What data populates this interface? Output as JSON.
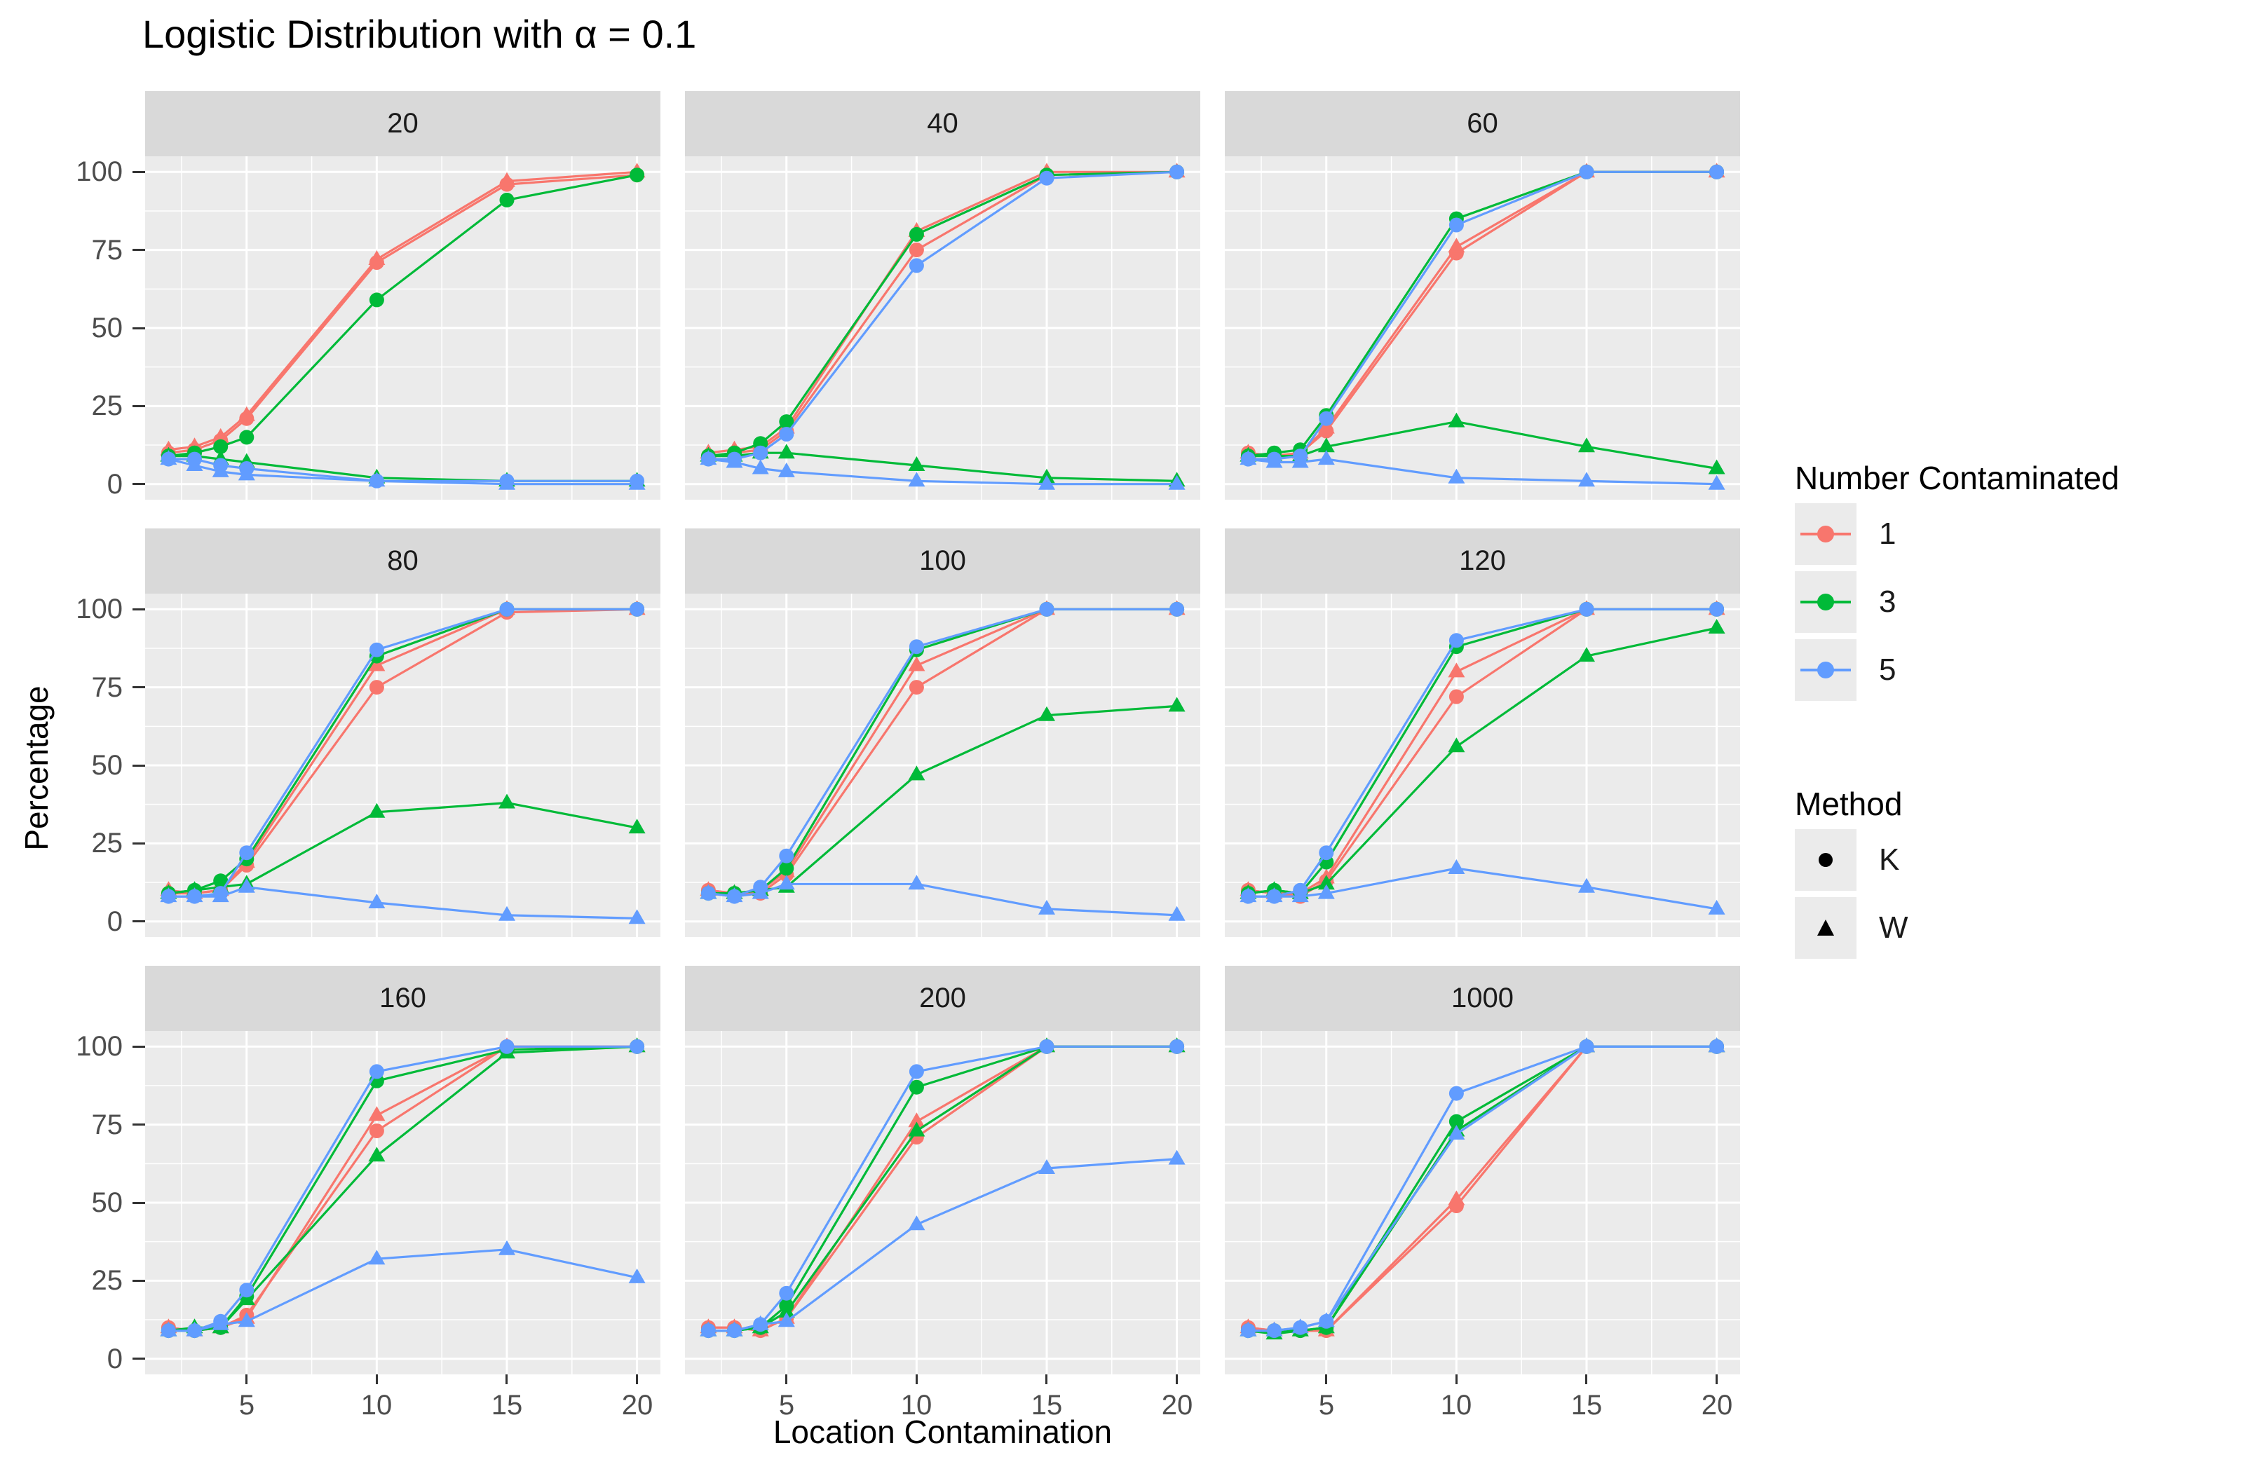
{
  "chart_data": {
    "type": "line",
    "title": "Logistic Distribution with α = 0.1",
    "xlabel": "Location Contamination",
    "ylabel": "Percentage",
    "x": [
      2,
      3,
      4,
      5,
      10,
      15,
      20
    ],
    "x_ticks": [
      5,
      10,
      15,
      20
    ],
    "x_minor": [
      2.5,
      7.5,
      12.5,
      17.5
    ],
    "y_ticks": [
      0,
      25,
      50,
      75,
      100
    ],
    "y_minor": [
      12.5,
      37.5,
      62.5,
      87.5
    ],
    "xlim": [
      1.1,
      20.9
    ],
    "ylim": [
      -5,
      105
    ],
    "grid": "on",
    "panel_bg": "#ebebeb",
    "strip_bg": "#d9d9d9",
    "legend_position": "right",
    "legend": {
      "color": {
        "title": "Number Contaminated",
        "entries": [
          {
            "label": "1",
            "color": "#F8766D"
          },
          {
            "label": "3",
            "color": "#00BA38"
          },
          {
            "label": "5",
            "color": "#619CFF"
          }
        ]
      },
      "shape": {
        "title": "Method",
        "entries": [
          {
            "label": "K",
            "shape": "circle"
          },
          {
            "label": "W",
            "shape": "triangle"
          }
        ]
      }
    },
    "facets": [
      {
        "label": "20",
        "series": [
          {
            "contaminated": "1",
            "method": "K",
            "values": [
              10,
              11,
              14,
              21,
              71,
              96,
              99
            ]
          },
          {
            "contaminated": "1",
            "method": "W",
            "values": [
              11,
              12,
              15,
              22,
              72,
              97,
              100
            ]
          },
          {
            "contaminated": "3",
            "method": "K",
            "values": [
              9,
              10,
              12,
              15,
              59,
              91,
              99
            ]
          },
          {
            "contaminated": "3",
            "method": "W",
            "values": [
              9,
              9,
              8,
              7,
              2,
              1,
              1
            ]
          },
          {
            "contaminated": "5",
            "method": "K",
            "values": [
              8,
              8,
              6,
              5,
              1,
              1,
              1
            ]
          },
          {
            "contaminated": "5",
            "method": "W",
            "values": [
              8,
              6,
              4,
              3,
              1,
              0,
              0
            ]
          }
        ]
      },
      {
        "label": "40",
        "series": [
          {
            "contaminated": "1",
            "method": "K",
            "values": [
              9,
              10,
              11,
              17,
              75,
              99,
              100
            ]
          },
          {
            "contaminated": "1",
            "method": "W",
            "values": [
              10,
              11,
              12,
              18,
              81,
              100,
              100
            ]
          },
          {
            "contaminated": "3",
            "method": "K",
            "values": [
              9,
              10,
              13,
              20,
              80,
              99,
              100
            ]
          },
          {
            "contaminated": "3",
            "method": "W",
            "values": [
              9,
              9,
              10,
              10,
              6,
              2,
              1
            ]
          },
          {
            "contaminated": "5",
            "method": "K",
            "values": [
              8,
              8,
              10,
              16,
              70,
              98,
              100
            ]
          },
          {
            "contaminated": "5",
            "method": "W",
            "values": [
              8,
              7,
              5,
              4,
              1,
              0,
              0
            ]
          }
        ]
      },
      {
        "label": "60",
        "series": [
          {
            "contaminated": "1",
            "method": "K",
            "values": [
              10,
              9,
              10,
              17,
              74,
              100,
              100
            ]
          },
          {
            "contaminated": "1",
            "method": "W",
            "values": [
              10,
              9,
              10,
              18,
              76,
              100,
              100
            ]
          },
          {
            "contaminated": "3",
            "method": "K",
            "values": [
              9,
              10,
              11,
              22,
              85,
              100,
              100
            ]
          },
          {
            "contaminated": "3",
            "method": "W",
            "values": [
              9,
              9,
              9,
              12,
              20,
              12,
              5
            ]
          },
          {
            "contaminated": "5",
            "method": "K",
            "values": [
              8,
              8,
              9,
              21,
              83,
              100,
              100
            ]
          },
          {
            "contaminated": "5",
            "method": "W",
            "values": [
              8,
              7,
              7,
              8,
              2,
              1,
              0
            ]
          }
        ]
      },
      {
        "label": "80",
        "series": [
          {
            "contaminated": "1",
            "method": "K",
            "values": [
              9,
              9,
              10,
              18,
              75,
              99,
              100
            ]
          },
          {
            "contaminated": "1",
            "method": "W",
            "values": [
              10,
              9,
              10,
              19,
              82,
              100,
              100
            ]
          },
          {
            "contaminated": "3",
            "method": "K",
            "values": [
              9,
              10,
              13,
              20,
              85,
              100,
              100
            ]
          },
          {
            "contaminated": "3",
            "method": "W",
            "values": [
              9,
              10,
              11,
              12,
              35,
              38,
              30
            ]
          },
          {
            "contaminated": "5",
            "method": "K",
            "values": [
              8,
              8,
              9,
              22,
              87,
              100,
              100
            ]
          },
          {
            "contaminated": "5",
            "method": "W",
            "values": [
              8,
              8,
              8,
              11,
              6,
              2,
              1
            ]
          }
        ]
      },
      {
        "label": "100",
        "series": [
          {
            "contaminated": "1",
            "method": "K",
            "values": [
              10,
              9,
              9,
              15,
              75,
              100,
              100
            ]
          },
          {
            "contaminated": "1",
            "method": "W",
            "values": [
              10,
              9,
              10,
              16,
              82,
              100,
              100
            ]
          },
          {
            "contaminated": "3",
            "method": "K",
            "values": [
              9,
              9,
              10,
              17,
              87,
              100,
              100
            ]
          },
          {
            "contaminated": "3",
            "method": "W",
            "values": [
              9,
              9,
              10,
              11,
              47,
              66,
              69
            ]
          },
          {
            "contaminated": "5",
            "method": "K",
            "values": [
              9,
              8,
              11,
              21,
              88,
              100,
              100
            ]
          },
          {
            "contaminated": "5",
            "method": "W",
            "values": [
              9,
              8,
              9,
              12,
              12,
              4,
              2
            ]
          }
        ]
      },
      {
        "label": "120",
        "series": [
          {
            "contaminated": "1",
            "method": "K",
            "values": [
              10,
              9,
              8,
              13,
              72,
              100,
              100
            ]
          },
          {
            "contaminated": "1",
            "method": "W",
            "values": [
              10,
              9,
              9,
              14,
              80,
              100,
              100
            ]
          },
          {
            "contaminated": "3",
            "method": "K",
            "values": [
              9,
              10,
              9,
              19,
              88,
              100,
              100
            ]
          },
          {
            "contaminated": "3",
            "method": "W",
            "values": [
              9,
              10,
              9,
              12,
              56,
              85,
              94
            ]
          },
          {
            "contaminated": "5",
            "method": "K",
            "values": [
              8,
              8,
              10,
              22,
              90,
              100,
              100
            ]
          },
          {
            "contaminated": "5",
            "method": "W",
            "values": [
              8,
              8,
              8,
              9,
              17,
              11,
              4
            ]
          }
        ]
      },
      {
        "label": "160",
        "series": [
          {
            "contaminated": "1",
            "method": "K",
            "values": [
              10,
              9,
              10,
              14,
              73,
              100,
              100
            ]
          },
          {
            "contaminated": "1",
            "method": "W",
            "values": [
              10,
              9,
              10,
              13,
              78,
              100,
              100
            ]
          },
          {
            "contaminated": "3",
            "method": "K",
            "values": [
              9,
              9,
              10,
              20,
              89,
              99,
              100
            ]
          },
          {
            "contaminated": "3",
            "method": "W",
            "values": [
              9,
              10,
              10,
              19,
              65,
              98,
              100
            ]
          },
          {
            "contaminated": "5",
            "method": "K",
            "values": [
              9,
              9,
              12,
              22,
              92,
              100,
              100
            ]
          },
          {
            "contaminated": "5",
            "method": "W",
            "values": [
              9,
              9,
              11,
              12,
              32,
              35,
              26
            ]
          }
        ]
      },
      {
        "label": "200",
        "series": [
          {
            "contaminated": "1",
            "method": "K",
            "values": [
              10,
              10,
              9,
              13,
              71,
              100,
              100
            ]
          },
          {
            "contaminated": "1",
            "method": "W",
            "values": [
              10,
              10,
              9,
              13,
              76,
              100,
              100
            ]
          },
          {
            "contaminated": "3",
            "method": "K",
            "values": [
              9,
              9,
              10,
              17,
              87,
              100,
              100
            ]
          },
          {
            "contaminated": "3",
            "method": "W",
            "values": [
              9,
              9,
              10,
              15,
              73,
              100,
              100
            ]
          },
          {
            "contaminated": "5",
            "method": "K",
            "values": [
              9,
              9,
              11,
              21,
              92,
              100,
              100
            ]
          },
          {
            "contaminated": "5",
            "method": "W",
            "values": [
              9,
              9,
              11,
              12,
              43,
              61,
              64
            ]
          }
        ]
      },
      {
        "label": "1000",
        "series": [
          {
            "contaminated": "1",
            "method": "K",
            "values": [
              10,
              9,
              9,
              9,
              49,
              100,
              100
            ]
          },
          {
            "contaminated": "1",
            "method": "W",
            "values": [
              10,
              9,
              9,
              9,
              51,
              100,
              100
            ]
          },
          {
            "contaminated": "3",
            "method": "K",
            "values": [
              9,
              9,
              9,
              10,
              76,
              100,
              100
            ]
          },
          {
            "contaminated": "3",
            "method": "W",
            "values": [
              9,
              8,
              9,
              10,
              73,
              100,
              100
            ]
          },
          {
            "contaminated": "5",
            "method": "K",
            "values": [
              9,
              9,
              10,
              12,
              85,
              100,
              100
            ]
          },
          {
            "contaminated": "5",
            "method": "W",
            "values": [
              9,
              9,
              10,
              12,
              72,
              100,
              100
            ]
          }
        ]
      }
    ]
  }
}
